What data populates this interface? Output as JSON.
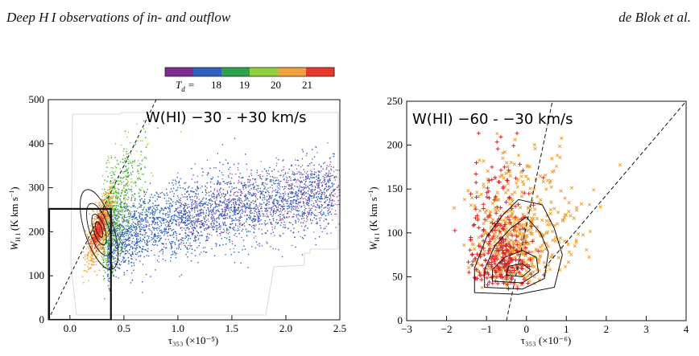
{
  "header": {
    "left": "Deep H I observations of in- and outflow",
    "right": "de Blok et al."
  },
  "colorbar": {
    "label_symbol": "T",
    "label_sub": "d",
    "ticks": [
      "18",
      "19",
      "20",
      "21"
    ],
    "colors": [
      "#7b2d8e",
      "#2f5fc0",
      "#2ea24a",
      "#8fcf3c",
      "#f2a23c",
      "#e83a2b"
    ]
  },
  "chart_data": [
    {
      "type": "scatter",
      "annotation": "W(HI) −30 - +30 km/s",
      "xlabel": "τ₃₅₃ (×10⁻⁵)",
      "ylabel": "W_HI (K km s⁻¹)",
      "xlim": [
        -0.2,
        2.5
      ],
      "ylim": [
        0,
        500
      ],
      "x_ticks": [
        "0.0",
        "0.5",
        "1.0",
        "1.5",
        "2.0",
        "2.5"
      ],
      "y_ticks": [
        "0",
        "100",
        "200",
        "300",
        "400",
        "500"
      ],
      "series": [
        {
          "color_by": "Td",
          "x_range": [
            0.15,
            0.35
          ],
          "y_range": [
            150,
            260
          ],
          "Td": 21
        },
        {
          "color_by": "Td",
          "x_range": [
            0.3,
            0.55
          ],
          "y_range": [
            120,
            400
          ],
          "Td": 20
        },
        {
          "color_by": "Td",
          "x_range": [
            0.4,
            2.5
          ],
          "y_range": [
            100,
            400
          ],
          "Td": 19
        },
        {
          "color_by": "Td",
          "x_range": [
            1.0,
            2.5
          ],
          "y_range": [
            200,
            380
          ],
          "Td": 18
        }
      ],
      "dashed_line": {
        "x": [
          -0.2,
          0.8
        ],
        "y": [
          0,
          500
        ]
      },
      "box": {
        "x": [
          -0.2,
          0.38
        ],
        "y": [
          0,
          252
        ]
      },
      "contour_peak": {
        "x": 0.27,
        "y": 205
      }
    },
    {
      "type": "scatter",
      "annotation": "W(HI) −60 - −30 km/s",
      "xlabel": "τ₃₅₃ (×10⁻⁶)",
      "ylabel": "W_HI (K km s⁻¹)",
      "xlim": [
        -3,
        4
      ],
      "ylim": [
        0,
        250
      ],
      "x_ticks": [
        "−3",
        "−2",
        "−1",
        "0",
        "1",
        "2",
        "3",
        "4"
      ],
      "y_ticks": [
        "0",
        "50",
        "100",
        "150",
        "200",
        "250"
      ],
      "series": [
        {
          "marker": "plus",
          "color": "#d7262b",
          "x_range": [
            -1.3,
            0.3
          ],
          "y_range": [
            30,
            210
          ]
        },
        {
          "marker": "x",
          "color": "#f0a030",
          "x_range": [
            -1.2,
            1.7
          ],
          "y_range": [
            30,
            210
          ]
        }
      ],
      "dashed_lines": [
        {
          "x": [
            -0.5,
            0.65
          ],
          "y": [
            0,
            250
          ]
        },
        {
          "x": [
            0.45,
            4.0
          ],
          "y": [
            60,
            250
          ]
        }
      ]
    }
  ]
}
